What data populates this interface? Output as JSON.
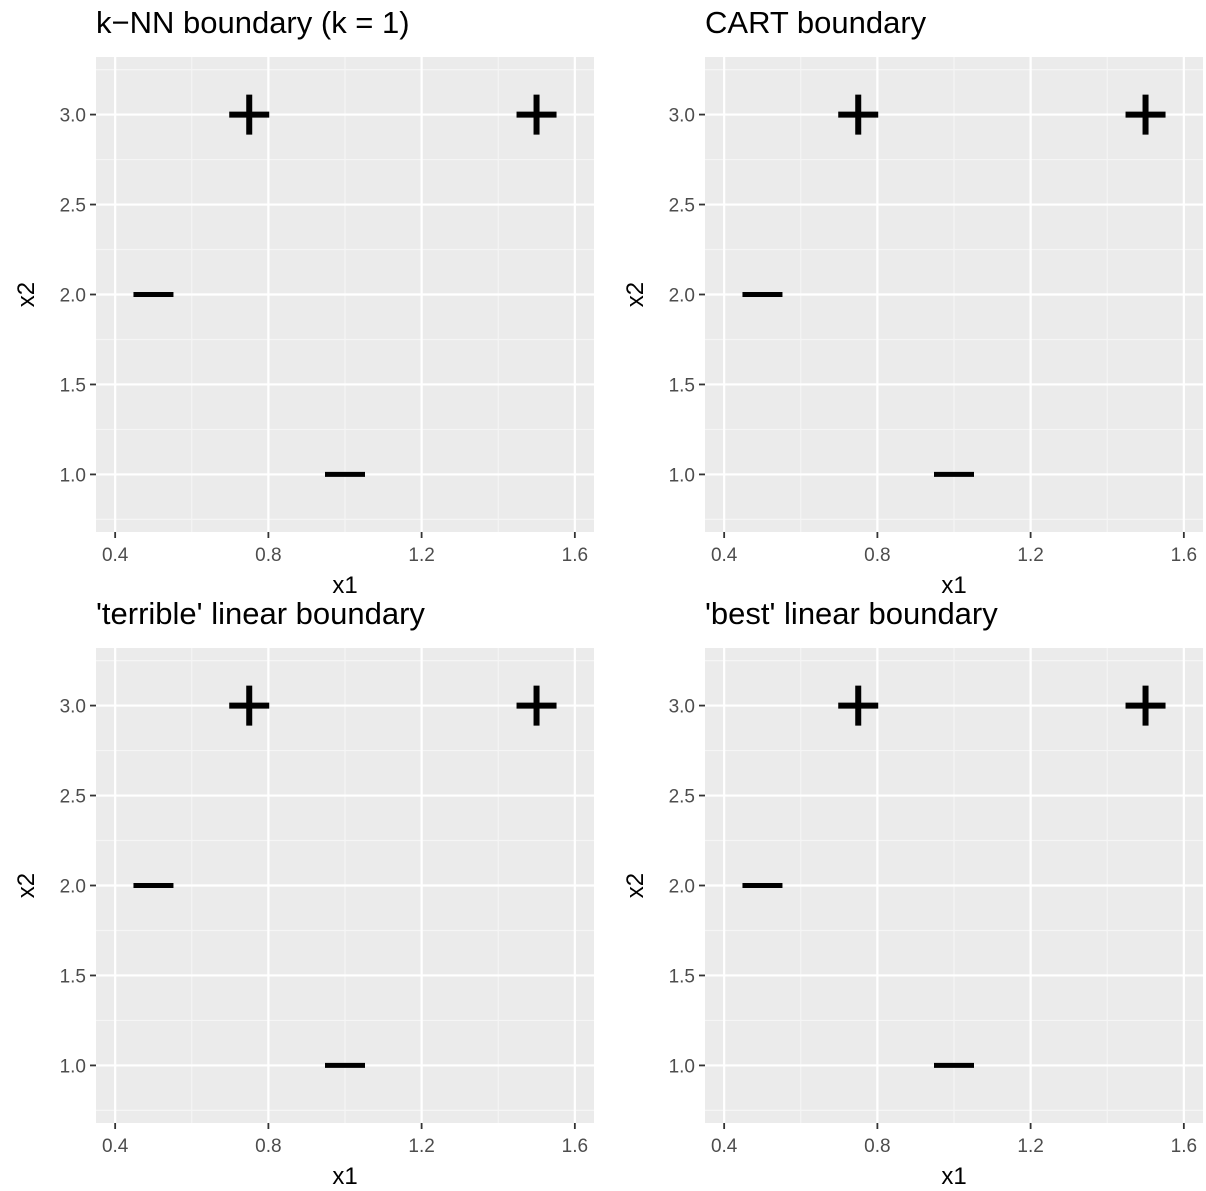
{
  "chart_data": [
    {
      "type": "scatter",
      "title": "k−NN boundary (k = 1)",
      "xlabel": "x1",
      "ylabel": "x2",
      "xlim": [
        0.35,
        1.65
      ],
      "ylim": [
        0.68,
        3.32
      ],
      "xticks": [
        0.4,
        0.8,
        1.2,
        1.6
      ],
      "xtick_labels": [
        "0.4",
        "0.8",
        "1.2",
        "1.6"
      ],
      "yticks": [
        1.0,
        1.5,
        2.0,
        2.5,
        3.0
      ],
      "ytick_labels": [
        "1.0",
        "1.5",
        "2.0",
        "2.5",
        "3.0"
      ],
      "grid": true,
      "points": [
        {
          "x": 0.5,
          "y": 2.0,
          "label": "−"
        },
        {
          "x": 1.0,
          "y": 1.0,
          "label": "−"
        },
        {
          "x": 0.75,
          "y": 3.0,
          "label": "+"
        },
        {
          "x": 1.5,
          "y": 3.0,
          "label": "+"
        }
      ]
    },
    {
      "type": "scatter",
      "title": "CART boundary",
      "xlabel": "x1",
      "ylabel": "x2",
      "xlim": [
        0.35,
        1.65
      ],
      "ylim": [
        0.68,
        3.32
      ],
      "xticks": [
        0.4,
        0.8,
        1.2,
        1.6
      ],
      "xtick_labels": [
        "0.4",
        "0.8",
        "1.2",
        "1.6"
      ],
      "yticks": [
        1.0,
        1.5,
        2.0,
        2.5,
        3.0
      ],
      "ytick_labels": [
        "1.0",
        "1.5",
        "2.0",
        "2.5",
        "3.0"
      ],
      "grid": true,
      "points": [
        {
          "x": 0.5,
          "y": 2.0,
          "label": "−"
        },
        {
          "x": 1.0,
          "y": 1.0,
          "label": "−"
        },
        {
          "x": 0.75,
          "y": 3.0,
          "label": "+"
        },
        {
          "x": 1.5,
          "y": 3.0,
          "label": "+"
        }
      ]
    },
    {
      "type": "scatter",
      "title": "'terrible' linear boundary",
      "xlabel": "x1",
      "ylabel": "x2",
      "xlim": [
        0.35,
        1.65
      ],
      "ylim": [
        0.68,
        3.32
      ],
      "xticks": [
        0.4,
        0.8,
        1.2,
        1.6
      ],
      "xtick_labels": [
        "0.4",
        "0.8",
        "1.2",
        "1.6"
      ],
      "yticks": [
        1.0,
        1.5,
        2.0,
        2.5,
        3.0
      ],
      "ytick_labels": [
        "1.0",
        "1.5",
        "2.0",
        "2.5",
        "3.0"
      ],
      "grid": true,
      "points": [
        {
          "x": 0.5,
          "y": 2.0,
          "label": "−"
        },
        {
          "x": 1.0,
          "y": 1.0,
          "label": "−"
        },
        {
          "x": 0.75,
          "y": 3.0,
          "label": "+"
        },
        {
          "x": 1.5,
          "y": 3.0,
          "label": "+"
        }
      ]
    },
    {
      "type": "scatter",
      "title": "'best' linear boundary",
      "xlabel": "x1",
      "ylabel": "x2",
      "xlim": [
        0.35,
        1.65
      ],
      "ylim": [
        0.68,
        3.32
      ],
      "xticks": [
        0.4,
        0.8,
        1.2,
        1.6
      ],
      "xtick_labels": [
        "0.4",
        "0.8",
        "1.2",
        "1.6"
      ],
      "yticks": [
        1.0,
        1.5,
        2.0,
        2.5,
        3.0
      ],
      "ytick_labels": [
        "1.0",
        "1.5",
        "2.0",
        "2.5",
        "3.0"
      ],
      "grid": true,
      "points": [
        {
          "x": 0.5,
          "y": 2.0,
          "label": "−"
        },
        {
          "x": 1.0,
          "y": 1.0,
          "label": "−"
        },
        {
          "x": 0.75,
          "y": 3.0,
          "label": "+"
        },
        {
          "x": 1.5,
          "y": 3.0,
          "label": "+"
        }
      ]
    }
  ],
  "colors": {
    "panel_background": "#ebebeb",
    "grid_major": "#ffffff",
    "grid_minor": "#f5f5f5",
    "tick_text": "#4d4d4d",
    "tick_mark": "#333333",
    "marker": "#000000"
  }
}
